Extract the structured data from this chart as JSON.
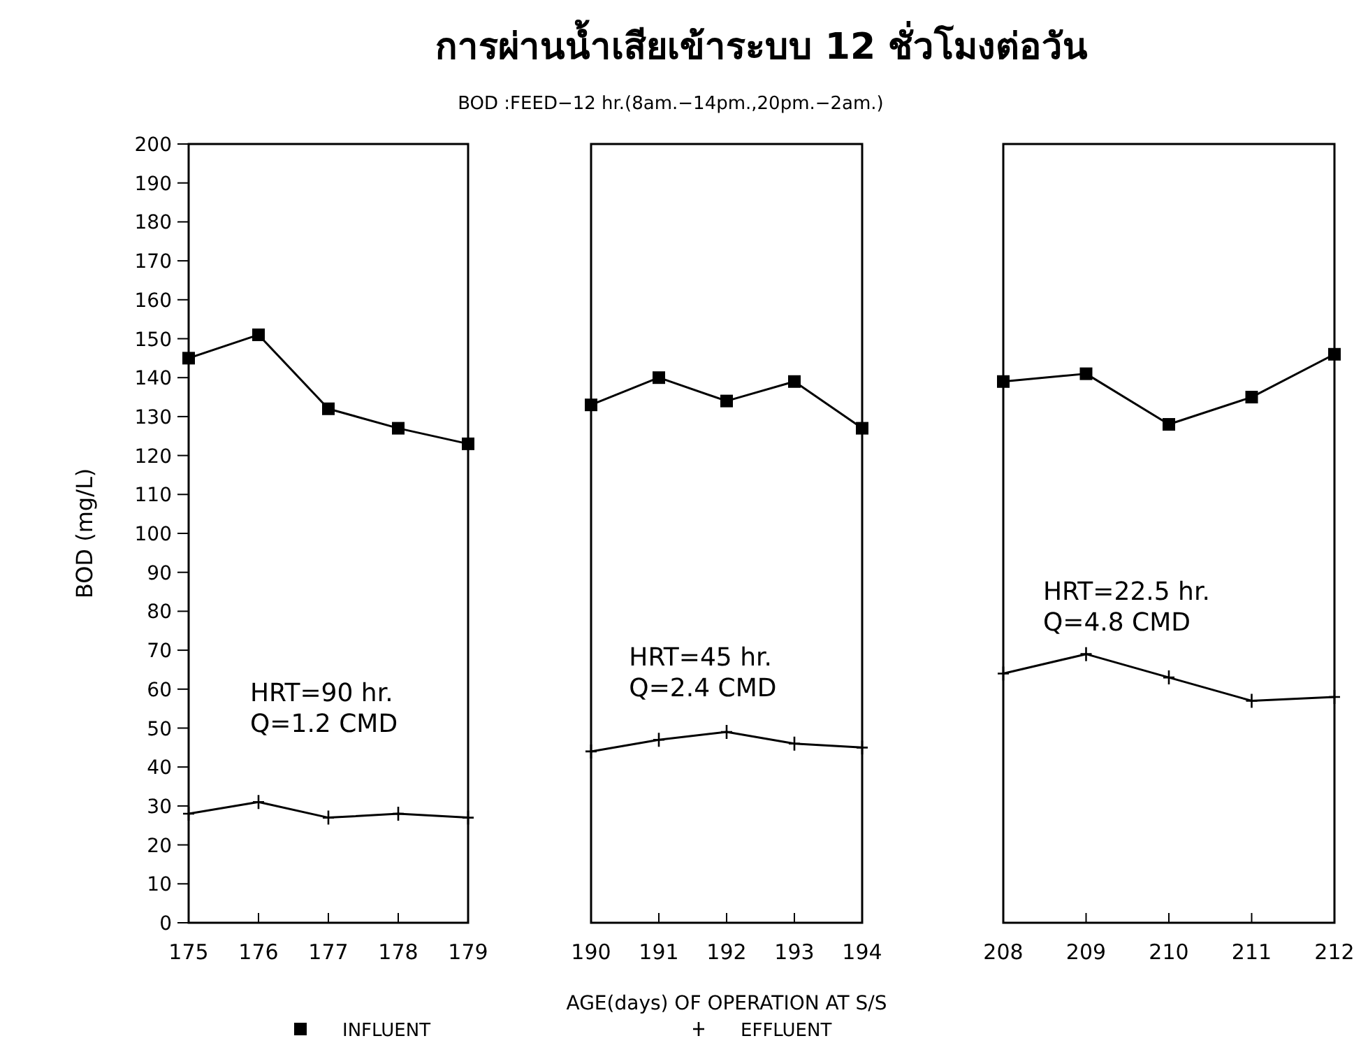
{
  "chart_data": [
    {
      "type": "line",
      "ylabel": "BOD (mg/L)",
      "x": [
        175,
        176,
        177,
        178,
        179
      ],
      "xlim": [
        175,
        179
      ],
      "xticks": [
        175,
        176,
        177,
        178,
        179
      ],
      "ylim": [
        0,
        200
      ],
      "yticks": [
        0,
        10,
        20,
        30,
        40,
        50,
        60,
        70,
        80,
        90,
        100,
        110,
        120,
        130,
        140,
        150,
        160,
        170,
        180,
        190,
        200
      ],
      "series": [
        {
          "color": "#000000",
          "marker": "square",
          "values": [
            145,
            151,
            132,
            127,
            123
          ]
        },
        {
          "color": "#000000",
          "marker": "cross",
          "values": [
            28,
            31,
            27,
            28,
            27
          ]
        }
      ],
      "annotations": [
        "HRT=90 hr.\nQ=1.2 CMD"
      ]
    },
    {
      "type": "line",
      "title": "การผ่านน้ำเสียเข้าระบบ 12 ชั่วโมงต่อวัน",
      "subtitle": "BOD :FEED−12 hr.(8am.−14pm.,20pm.−2am.)",
      "xlabel": "AGE(days) OF OPERATION AT S/S",
      "legend": "bottom",
      "tick_labels": "x",
      "x": [
        190,
        191,
        192,
        193,
        194
      ],
      "xlim": [
        190,
        194
      ],
      "xticks": [
        190,
        191,
        192,
        193,
        194
      ],
      "ylim": [
        0,
        200
      ],
      "series": [
        {
          "name": "INFLUENT",
          "color": "#000000",
          "marker": "square",
          "values": [
            133,
            140,
            134,
            139,
            127
          ]
        },
        {
          "name": "EFFLUENT",
          "color": "#000000",
          "marker": "cross",
          "values": [
            44,
            47,
            49,
            46,
            45
          ]
        }
      ],
      "annotations": [
        "HRT=45 hr.\nQ=2.4 CMD"
      ]
    },
    {
      "type": "line",
      "tick_labels": "x",
      "x": [
        208,
        209,
        210,
        211,
        212
      ],
      "xlim": [
        208,
        212
      ],
      "xticks": [
        208,
        209,
        210,
        211,
        212
      ],
      "ylim": [
        0,
        200
      ],
      "series": [
        {
          "color": "#000000",
          "marker": "square",
          "values": [
            139,
            141,
            128,
            135,
            146
          ]
        },
        {
          "color": "#000000",
          "marker": "cross",
          "values": [
            64,
            69,
            63,
            57,
            58
          ]
        }
      ],
      "annotations": [
        "HRT=22.5 hr.\nQ=4.8 CMD"
      ]
    }
  ]
}
